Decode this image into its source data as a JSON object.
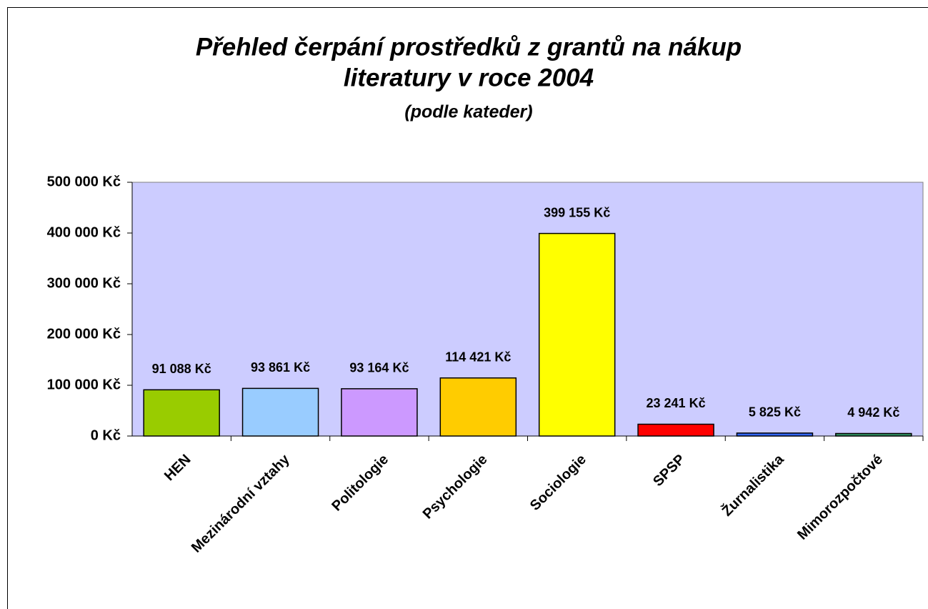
{
  "chart_data": {
    "type": "bar",
    "title": [
      "Přehled čerpání prostředků z grantů na nákup",
      "literatury v roce 2004"
    ],
    "subtitle": "(podle kateder)",
    "categories": [
      "HEN",
      "Mezinárodní vztahy",
      "Politologie",
      "Psychologie",
      "Sociologie",
      "SPSP",
      "Žurnalistika",
      "Mimorozpočtové"
    ],
    "values": [
      91088,
      93861,
      93164,
      114421,
      399155,
      23241,
      5825,
      4942
    ],
    "value_labels": [
      "91 088 Kč",
      "93 861 Kč",
      "93 164 Kč",
      "114 421 Kč",
      "399 155 Kč",
      "23 241 Kč",
      "5 825 Kč",
      "4 942 Kč"
    ],
    "colors": [
      "#99cc00",
      "#99ccff",
      "#cc99ff",
      "#ffcc00",
      "#ffff00",
      "#ff0000",
      "#3366ff",
      "#339966"
    ],
    "ylim": [
      0,
      500000
    ],
    "yticks": [
      {
        "value": 0,
        "label": "0 Kč"
      },
      {
        "value": 100000,
        "label": "100 000 Kč"
      },
      {
        "value": 200000,
        "label": "200 000 Kč"
      },
      {
        "value": 300000,
        "label": "300 000 Kč"
      },
      {
        "value": 400000,
        "label": "400 000 Kč"
      },
      {
        "value": 500000,
        "label": "500 000 Kč"
      }
    ],
    "plot_background": "#ccccff"
  }
}
